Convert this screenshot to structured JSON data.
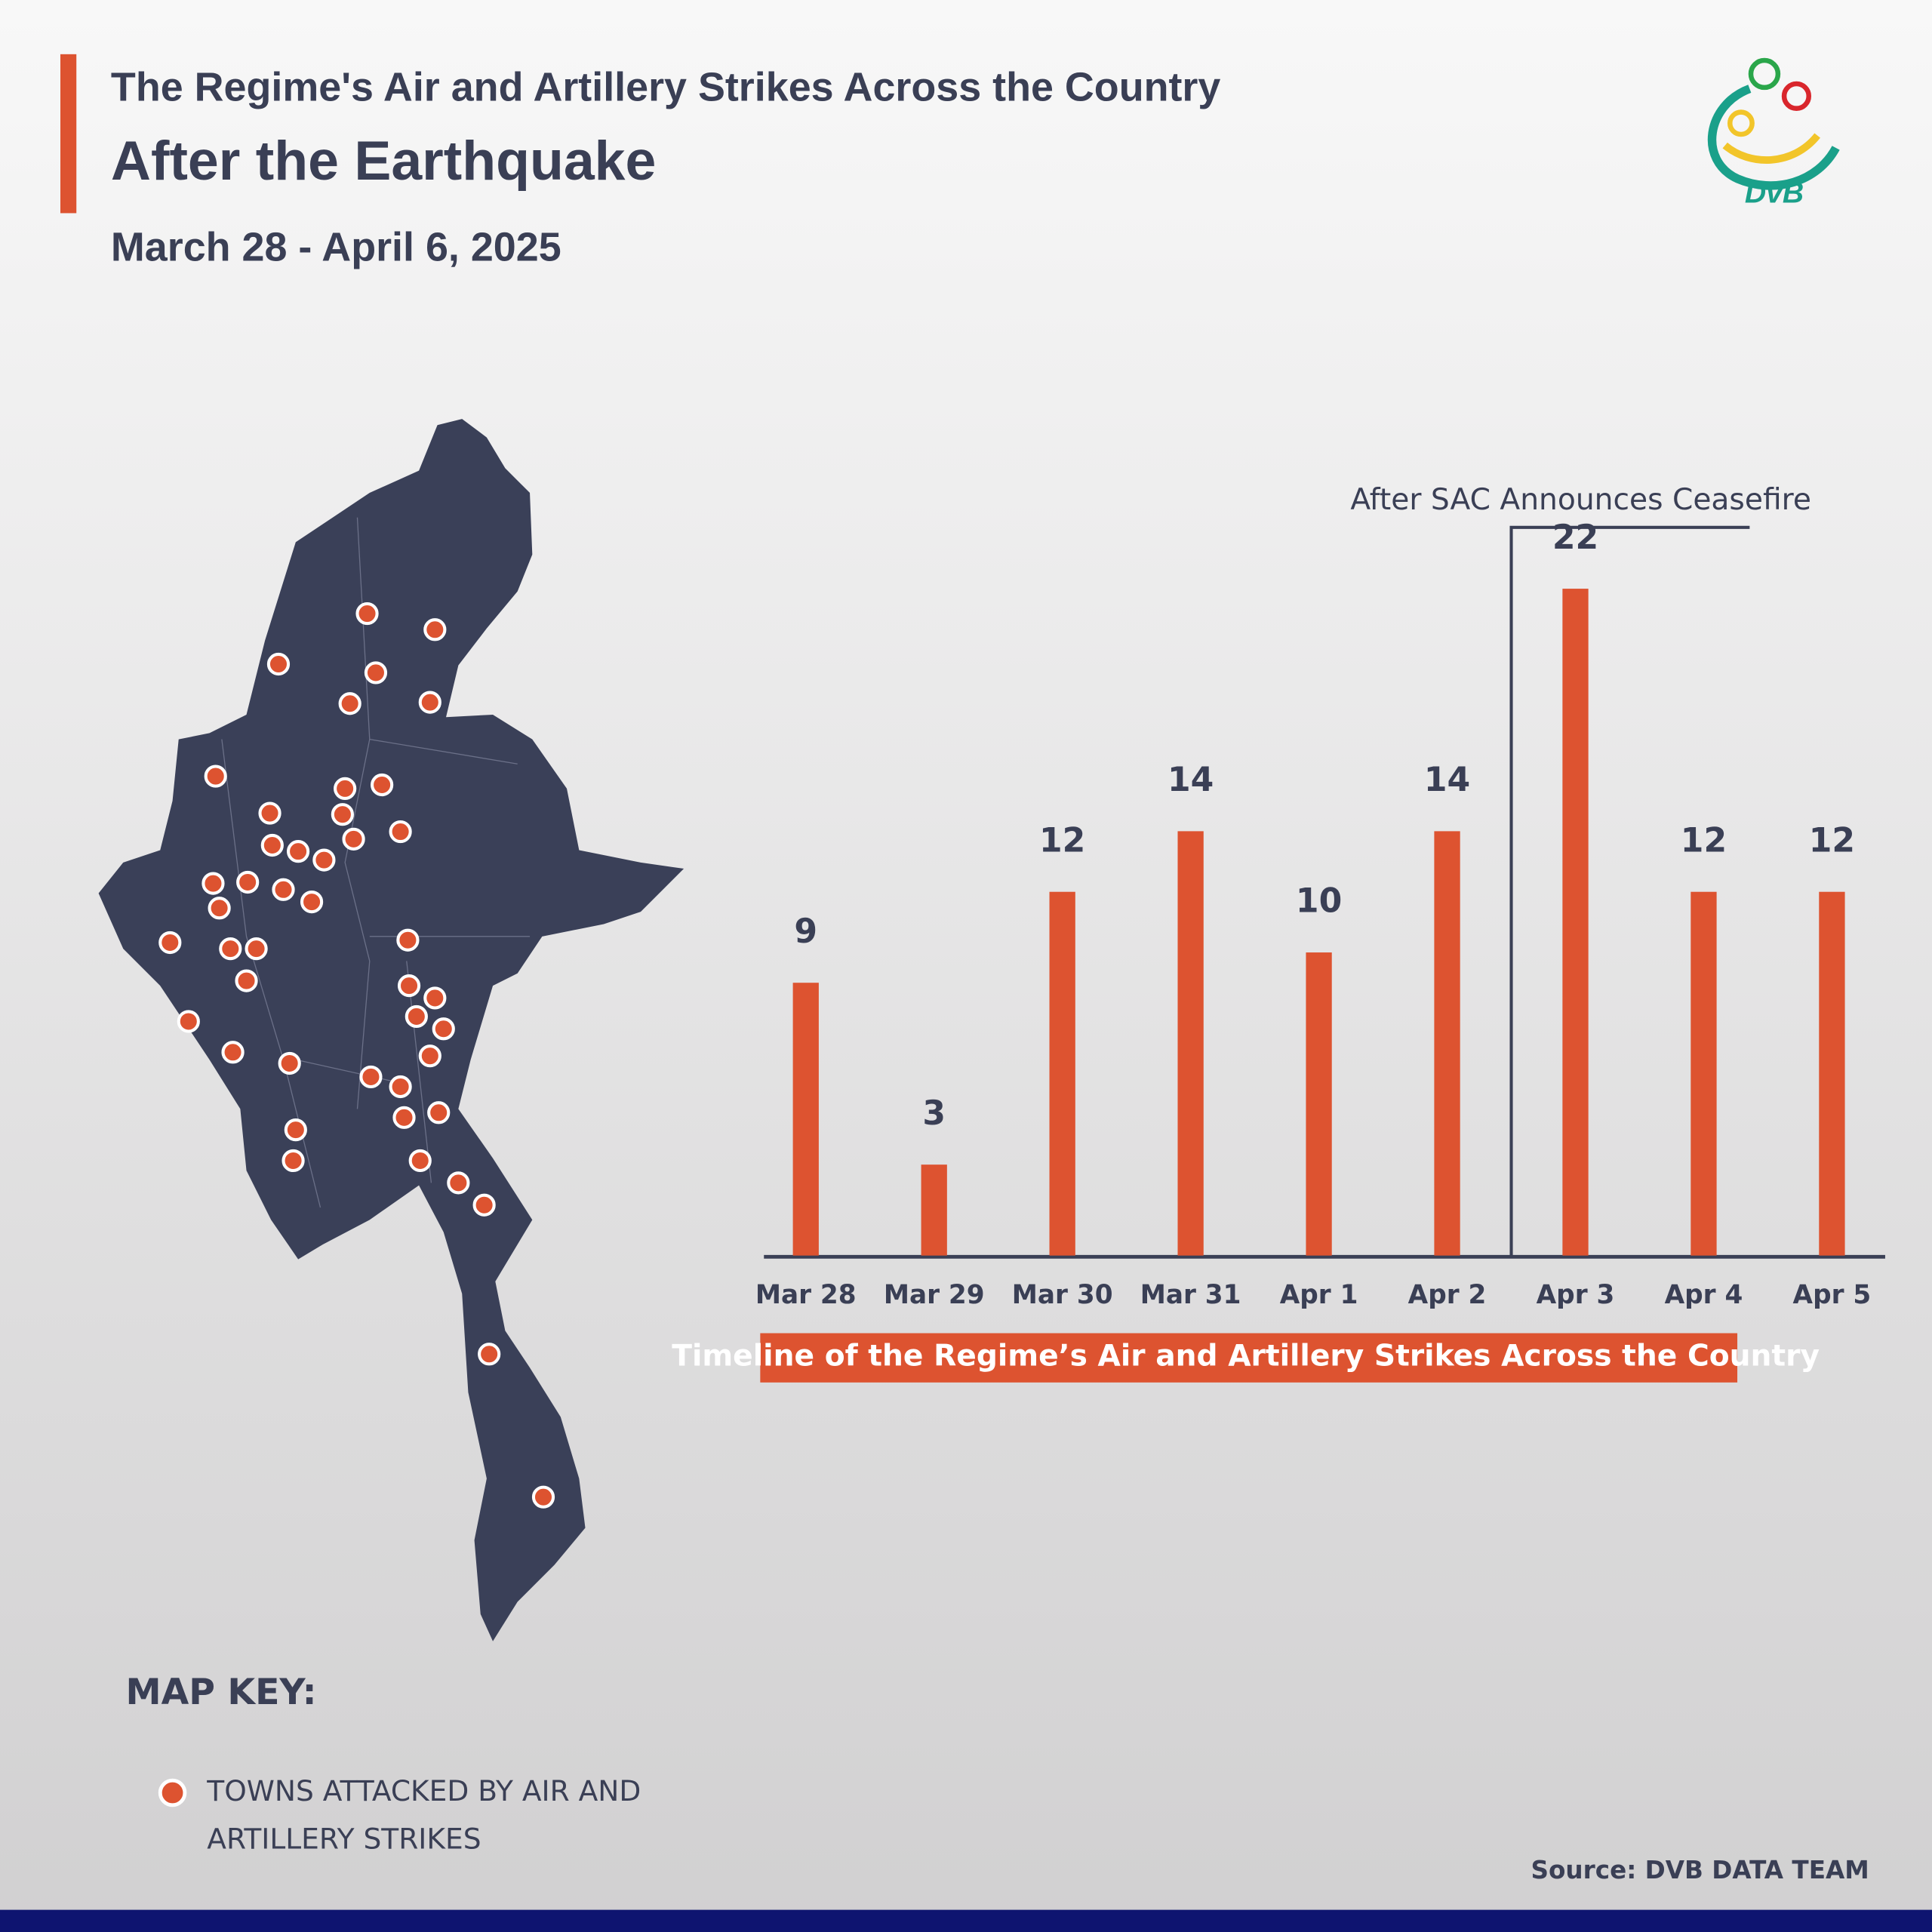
{
  "header": {
    "title": "The Regime's Air and Artillery Strikes Across the Country",
    "subtitle": "After the Earthquake",
    "date_range": "March 28 - April 6, 2025",
    "logo": "DvB"
  },
  "chart_data": {
    "type": "bar",
    "title": "Timeline of the Regime’s Air and Artillery Strikes Across the Country",
    "annotation": "After SAC Announces Ceasefire",
    "categories": [
      "Mar 28",
      "Mar 29",
      "Mar 30",
      "Mar 31",
      "Apr 1",
      "Apr 2",
      "Apr 3",
      "Apr 4",
      "Apr 5"
    ],
    "values": [
      9,
      3,
      12,
      14,
      10,
      14,
      22,
      12,
      12
    ],
    "color": "#dd5330"
  },
  "map_key": {
    "title": "MAP KEY:",
    "items": [
      {
        "lines": [
          "TOWNS ATTACKED BY AIR AND",
          "ARTILLERY STRIKES"
        ],
        "color": "#dd5330"
      }
    ]
  },
  "footer": {
    "source": "Source: DVB DATA TEAM"
  }
}
